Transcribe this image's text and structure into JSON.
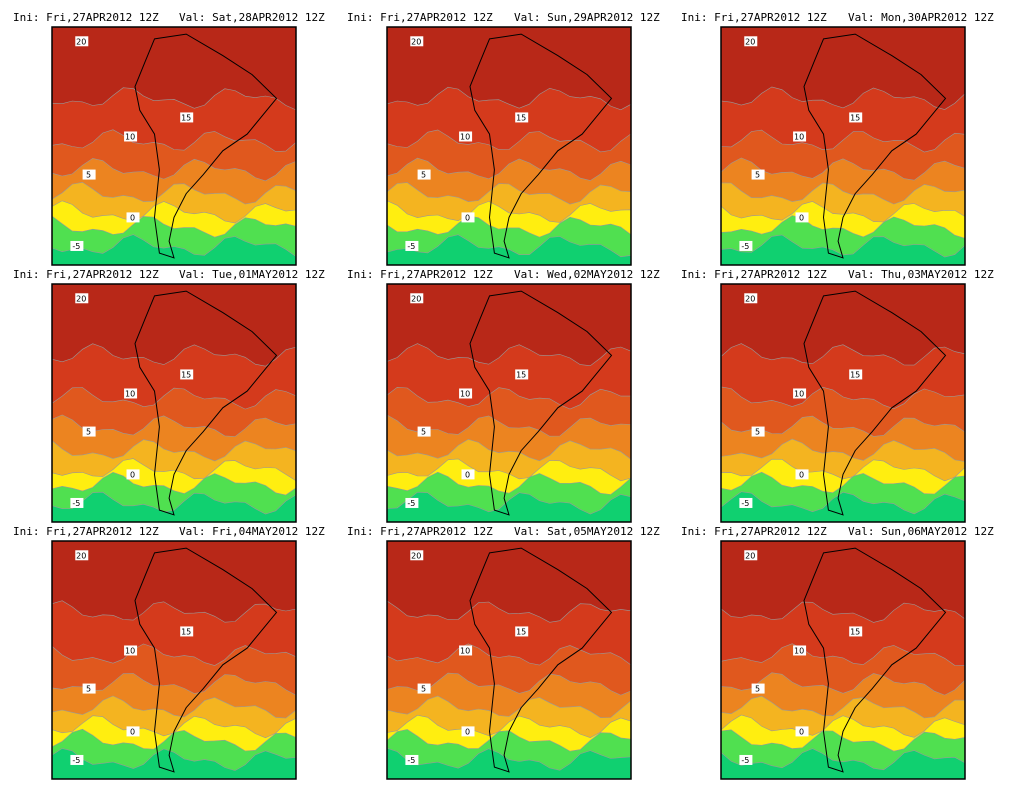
{
  "panels": [
    {
      "init": "Ini: Fri,27APR2012 12Z",
      "valid": "Val: Sat,28APR2012 12Z",
      "labels": [
        20,
        15,
        10,
        5,
        0,
        -5
      ]
    },
    {
      "init": "Ini: Fri,27APR2012 12Z",
      "valid": "Val: Sun,29APR2012 12Z",
      "labels": [
        20,
        15,
        10,
        5,
        0,
        -5
      ]
    },
    {
      "init": "Ini: Fri,27APR2012 12Z",
      "valid": "Val: Mon,30APR2012 12Z",
      "labels": [
        20,
        15,
        10,
        5,
        0,
        -5
      ]
    },
    {
      "init": "Ini: Fri,27APR2012 12Z",
      "valid": "Val: Tue,01MAY2012 12Z",
      "labels": [
        20,
        15,
        10,
        5,
        0,
        -5
      ]
    },
    {
      "init": "Ini: Fri,27APR2012 12Z",
      "valid": "Val: Wed,02MAY2012 12Z",
      "labels": [
        20,
        15,
        10,
        5,
        0,
        -5
      ]
    },
    {
      "init": "Ini: Fri,27APR2012 12Z",
      "valid": "Val: Thu,03MAY2012 12Z",
      "labels": [
        20,
        15,
        10,
        5,
        0,
        -5
      ]
    },
    {
      "init": "Ini: Fri,27APR2012 12Z",
      "valid": "Val: Fri,04MAY2012 12Z",
      "labels": [
        20,
        15,
        10,
        5,
        0,
        -5
      ]
    },
    {
      "init": "Ini: Fri,27APR2012 12Z",
      "valid": "Val: Sat,05MAY2012 12Z",
      "labels": [
        20,
        15,
        10,
        5,
        0,
        -5
      ]
    },
    {
      "init": "Ini: Fri,27APR2012 12Z",
      "valid": "Val: Sun,06MAY2012 12Z",
      "labels": [
        20,
        15,
        10,
        5,
        0,
        -5
      ]
    }
  ]
}
